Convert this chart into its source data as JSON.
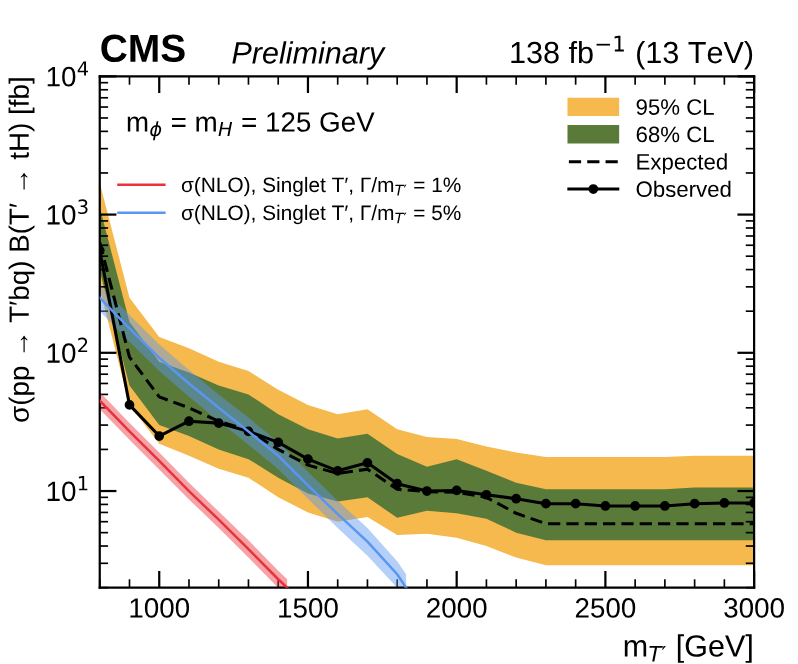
{
  "chart_data": {
    "type": "line",
    "title": "CMS",
    "subtitle": "Preliminary",
    "annotations": [
      "138 fb$^{−1}$ (13 TeV)",
      "m$_{ϕ}$ = m$_{H}$ = 125 GeV"
    ],
    "xlabel": "m$_{T′}$ [GeV]",
    "ylabel": "σ(pp → T′bq) B(T′ → tH) [fb]",
    "x": [
      800,
      900,
      1000,
      1100,
      1200,
      1300,
      1400,
      1500,
      1600,
      1700,
      1800,
      1900,
      2000,
      2100,
      2200,
      2300,
      2400,
      2500,
      2600,
      2700,
      2800,
      2900,
      3000
    ],
    "series": [
      {
        "name": "95% CL",
        "color": "#f5b94d",
        "values": [
          null,
          null,
          null,
          null,
          null,
          null,
          null,
          null,
          null,
          null,
          null,
          null,
          null,
          null,
          null,
          null,
          null,
          null,
          null,
          null,
          null,
          null,
          null
        ],
        "lower": [
          290,
          42,
          22,
          18,
          14.5,
          12.5,
          9,
          7,
          6,
          6.5,
          4.8,
          4.9,
          4.6,
          4.0,
          3.3,
          2.9,
          2.9,
          2.9,
          2.9,
          2.9,
          2.9,
          2.9,
          2.9
        ],
        "upper": [
          1700,
          250,
          130,
          108,
          86,
          74,
          54,
          42,
          36,
          39,
          28,
          24.6,
          23.8,
          21,
          19,
          17.6,
          17.6,
          17.6,
          17.6,
          17.6,
          18,
          18,
          18
        ]
      },
      {
        "name": "68% CL",
        "color": "#5a7a3a",
        "values": [
          null,
          null,
          null,
          null,
          null,
          null,
          null,
          null,
          null,
          null,
          null,
          null,
          null,
          null,
          null,
          null,
          null,
          null,
          null,
          null,
          null,
          null,
          null
        ],
        "lower": [
          390,
          58,
          30,
          25,
          20,
          17,
          12.5,
          9.6,
          8.4,
          9,
          6.4,
          7.2,
          6.9,
          6.3,
          5,
          4.4,
          4.4,
          4.4,
          4.4,
          4.4,
          4.4,
          4.4,
          4.4
        ],
        "upper": [
          1130,
          167,
          86,
          72,
          58,
          50,
          36,
          28,
          24,
          26,
          18.5,
          15,
          17,
          14,
          11.5,
          10.3,
          10.3,
          10.3,
          10.3,
          10.3,
          10.6,
          10.6,
          10.6
        ]
      },
      {
        "name": "Expected",
        "color": "#000000",
        "line_style": "dashed",
        "marker": "none",
        "values": [
          630,
          93,
          48,
          40,
          32,
          27.5,
          20,
          15.4,
          13.4,
          14.4,
          10.3,
          9.9,
          9.8,
          9.0,
          6.9,
          5.8,
          5.8,
          5.8,
          5.8,
          5.8,
          5.8,
          5.8,
          5.8
        ]
      },
      {
        "name": "Observed",
        "color": "#000000",
        "line_style": "solid",
        "marker": "circle",
        "values": [
          550,
          42,
          25,
          32,
          31,
          27,
          22.5,
          17,
          14,
          16,
          11.3,
          10,
          10.1,
          9.4,
          8.8,
          8.1,
          8.1,
          7.8,
          7.8,
          7.8,
          8.1,
          8.2,
          8.2
        ]
      },
      {
        "name": "σ(NLO), Singlet T′, Γ/m$_{T′}$ = 1%",
        "color": "#e8323c",
        "line_style": "solid",
        "marker": "none",
        "x": [
          800,
          900,
          1000,
          1100,
          1200,
          1300,
          1400,
          1430
        ],
        "values": [
          45,
          27,
          16.5,
          10,
          6.2,
          3.8,
          2.3,
          2.0
        ],
        "lower": [
          39,
          23.5,
          14.3,
          8.7,
          5.4,
          3.3,
          2.0,
          2.0
        ],
        "upper": [
          52,
          31,
          19,
          11.5,
          7.1,
          4.4,
          2.65,
          2.3
        ]
      },
      {
        "name": "σ(NLO), Singlet T′, Γ/m$_{T′}$ = 5%",
        "color": "#5a96f0",
        "line_style": "solid",
        "marker": "none",
        "x": [
          800,
          900,
          1000,
          1100,
          1200,
          1300,
          1400,
          1500,
          1600,
          1700,
          1800,
          1830
        ],
        "values": [
          250,
          150,
          92,
          60,
          40,
          27,
          18,
          11,
          6.8,
          4.3,
          2.5,
          2.0
        ],
        "lower": [
          200,
          120,
          74,
          48,
          32,
          21.6,
          14.4,
          8.8,
          5.4,
          3.4,
          2.0,
          2.0
        ],
        "upper": [
          310,
          188,
          115,
          75,
          50,
          34,
          22.5,
          13.8,
          8.5,
          5.4,
          3.1,
          2.5
        ]
      }
    ],
    "log": "y",
    "xlim": [
      800,
      3000
    ],
    "ylim": [
      2,
      10000
    ],
    "xticks": [
      1000,
      1500,
      2000,
      2500,
      3000
    ],
    "yticks": [
      {
        "value": 10,
        "label": "10$^{1}$"
      },
      {
        "value": 100,
        "label": "10$^{2}$"
      },
      {
        "value": 1000,
        "label": "10$^{3}$"
      },
      {
        "value": 10000,
        "label": "10$^{4}$"
      }
    ],
    "legend": "top right",
    "grid": false
  }
}
